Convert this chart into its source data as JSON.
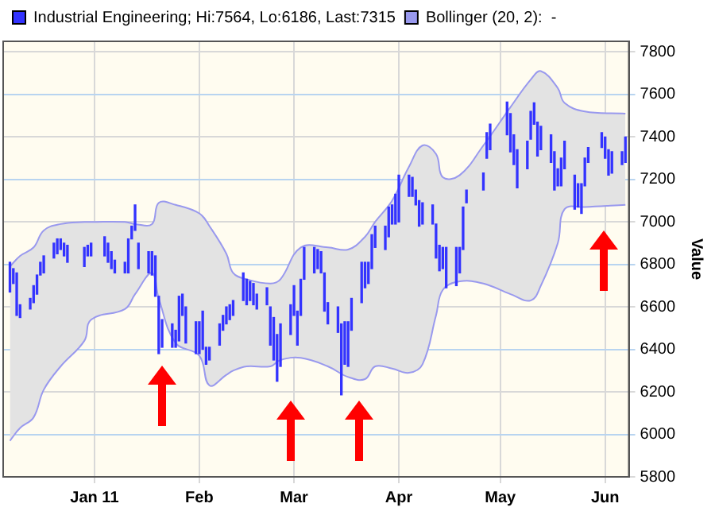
{
  "chart_data": {
    "type": "bar",
    "ylabel": "Value",
    "xlim": [
      "2010-12-05",
      "2011-06-08"
    ],
    "xticks": [
      {
        "value": "2011-01-01",
        "label": "Jan 11"
      },
      {
        "value": "2011-02-01",
        "label": "Feb"
      },
      {
        "value": "2011-03-01",
        "label": "Mar"
      },
      {
        "value": "2011-04-01",
        "label": "Apr"
      },
      {
        "value": "2011-05-01",
        "label": "May"
      },
      {
        "value": "2011-06-01",
        "label": "Jun"
      }
    ],
    "ylim": [
      5800,
      7850
    ],
    "yticks": [
      5800,
      6000,
      6200,
      6400,
      6600,
      6800,
      7000,
      7200,
      7400,
      7600,
      7800
    ],
    "grid": true,
    "legend": "top left",
    "series": [
      {
        "name": "Industrial Engineering; Hi:7564, Lo:6186, Last:7315",
        "color": "#3333ff",
        "x": [
          "2010-12-07",
          "2010-12-08",
          "2010-12-09",
          "2010-12-10",
          "2010-12-13",
          "2010-12-14",
          "2010-12-15",
          "2010-12-16",
          "2010-12-17",
          "2010-12-20",
          "2010-12-21",
          "2010-12-22",
          "2010-12-23",
          "2010-12-24",
          "2010-12-29",
          "2010-12-30",
          "2010-12-31",
          "2011-01-04",
          "2011-01-05",
          "2011-01-06",
          "2011-01-07",
          "2011-01-10",
          "2011-01-11",
          "2011-01-12",
          "2011-01-13",
          "2011-01-14",
          "2011-01-17",
          "2011-01-18",
          "2011-01-19",
          "2011-01-20",
          "2011-01-21",
          "2011-01-24",
          "2011-01-25",
          "2011-01-26",
          "2011-01-27",
          "2011-01-28",
          "2011-01-31",
          "2011-02-01",
          "2011-02-02",
          "2011-02-03",
          "2011-02-04",
          "2011-02-07",
          "2011-02-08",
          "2011-02-09",
          "2011-02-10",
          "2011-02-11",
          "2011-02-14",
          "2011-02-15",
          "2011-02-16",
          "2011-02-17",
          "2011-02-18",
          "2011-02-21",
          "2011-02-22",
          "2011-02-23",
          "2011-02-24",
          "2011-02-25",
          "2011-02-28",
          "2011-03-01",
          "2011-03-02",
          "2011-03-03",
          "2011-03-04",
          "2011-03-07",
          "2011-03-08",
          "2011-03-09",
          "2011-03-10",
          "2011-03-11",
          "2011-03-14",
          "2011-03-15",
          "2011-03-16",
          "2011-03-17",
          "2011-03-18",
          "2011-03-21",
          "2011-03-22",
          "2011-03-23",
          "2011-03-24",
          "2011-03-25",
          "2011-03-28",
          "2011-03-29",
          "2011-03-30",
          "2011-03-31",
          "2011-04-01",
          "2011-04-04",
          "2011-04-05",
          "2011-04-06",
          "2011-04-07",
          "2011-04-08",
          "2011-04-11",
          "2011-04-12",
          "2011-04-13",
          "2011-04-14",
          "2011-04-15",
          "2011-04-18",
          "2011-04-19",
          "2011-04-20",
          "2011-04-21",
          "2011-04-26",
          "2011-04-27",
          "2011-04-28",
          "2011-05-03",
          "2011-05-04",
          "2011-05-05",
          "2011-05-06",
          "2011-05-09",
          "2011-05-10",
          "2011-05-11",
          "2011-05-12",
          "2011-05-13",
          "2011-05-16",
          "2011-05-17",
          "2011-05-18",
          "2011-05-19",
          "2011-05-20",
          "2011-05-23",
          "2011-05-24",
          "2011-05-25",
          "2011-05-26",
          "2011-05-27",
          "2011-05-31",
          "2011-06-01",
          "2011-06-02",
          "2011-06-03",
          "2011-06-06",
          "2011-06-07"
        ],
        "base": [
          6670,
          6710,
          6560,
          6550,
          6590,
          6620,
          6660,
          6750,
          6760,
          6830,
          6850,
          6870,
          6840,
          6810,
          6790,
          6840,
          6840,
          6840,
          6810,
          6780,
          6760,
          6760,
          6760,
          6920,
          6960,
          6780,
          6760,
          6750,
          6650,
          6380,
          6410,
          6410,
          6410,
          6440,
          6560,
          6430,
          6380,
          6380,
          6400,
          6330,
          6350,
          6420,
          6490,
          6520,
          6540,
          6560,
          6630,
          6610,
          6630,
          6610,
          6590,
          6610,
          6420,
          6350,
          6250,
          6320,
          6470,
          6560,
          6420,
          6560,
          6730,
          6760,
          6780,
          6760,
          6580,
          6520,
          6480,
          6186,
          6330,
          6320,
          6490,
          6620,
          6690,
          6710,
          6780,
          6880,
          6870,
          6930,
          6990,
          6990,
          7000,
          7120,
          7120,
          7080,
          6980,
          6990,
          6990,
          6830,
          6770,
          6780,
          6690,
          6700,
          6760,
          6870,
          7090,
          7150,
          7300,
          7340,
          7410,
          7330,
          7270,
          7160,
          7250,
          7390,
          7460,
          7310,
          7340,
          7280,
          7150,
          7170,
          7170,
          7250,
          7060,
          7070,
          7040,
          7170,
          7280,
          7350,
          7300,
          7220,
          7230,
          7270,
          7280
        ],
        "values": [
          140,
          70,
          200,
          60,
          50,
          80,
          90,
          60,
          80,
          70,
          70,
          50,
          60,
          80,
          90,
          50,
          60,
          90,
          90,
          80,
          60,
          50,
          160,
          60,
          120,
          120,
          100,
          110,
          190,
          270,
          130,
          110,
          80,
          210,
          100,
          170,
          150,
          150,
          180,
          80,
          60,
          100,
          70,
          80,
          70,
          70,
          130,
          120,
          90,
          100,
          70,
          80,
          180,
          200,
          220,
          200,
          140,
          140,
          160,
          170,
          150,
          120,
          90,
          100,
          180,
          100,
          120,
          334,
          200,
          210,
          150,
          190,
          120,
          100,
          160,
          100,
          110,
          140,
          90,
          140,
          220,
          100,
          90,
          70,
          120,
          100,
          90,
          160,
          120,
          100,
          190,
          180,
          120,
          200,
          60,
          80,
          120,
          120,
          154,
          180,
          140,
          180,
          130,
          130,
          100,
          160,
          110,
          130,
          180,
          80,
          130,
          130,
          160,
          110,
          140,
          130,
          70,
          70,
          100,
          120,
          100,
          60,
          120
        ]
      },
      {
        "name": "Bollinger (20, 2):  -",
        "type": "line",
        "color": "#9999ee",
        "x": [
          "2010-12-07",
          "2010-12-10",
          "2010-12-14",
          "2010-12-17",
          "2010-12-22",
          "2010-12-29",
          "2010-12-31",
          "2011-01-10",
          "2011-01-13",
          "2011-01-18",
          "2011-01-20",
          "2011-01-25",
          "2011-02-01",
          "2011-02-04",
          "2011-02-09",
          "2011-02-11",
          "2011-02-15",
          "2011-02-22",
          "2011-02-25",
          "2011-03-03",
          "2011-03-11",
          "2011-03-17",
          "2011-03-22",
          "2011-03-25",
          "2011-03-30",
          "2011-04-04",
          "2011-04-08",
          "2011-04-12",
          "2011-04-14",
          "2011-04-19",
          "2011-04-26",
          "2011-05-04",
          "2011-05-10",
          "2011-05-13",
          "2011-05-18",
          "2011-05-20",
          "2011-05-26",
          "2011-06-07"
        ],
        "values": [
          6790,
          6840,
          6880,
          6960,
          6990,
          7000,
          7000,
          7000,
          6990,
          6990,
          7090,
          7080,
          7040,
          6980,
          6850,
          6760,
          6730,
          6710,
          6730,
          6880,
          6880,
          6870,
          6930,
          7000,
          7100,
          7260,
          7360,
          7320,
          7210,
          7220,
          7360,
          7540,
          7670,
          7710,
          7630,
          7560,
          7520,
          7510
        ]
      },
      {
        "type": "line",
        "color": "#9999ee",
        "x": [
          "2010-12-07",
          "2010-12-10",
          "2010-12-14",
          "2010-12-17",
          "2010-12-22",
          "2010-12-29",
          "2010-12-31",
          "2011-01-10",
          "2011-01-13",
          "2011-01-18",
          "2011-01-20",
          "2011-01-25",
          "2011-02-01",
          "2011-02-04",
          "2011-02-09",
          "2011-02-11",
          "2011-02-15",
          "2011-02-22",
          "2011-02-25",
          "2011-03-03",
          "2011-03-11",
          "2011-03-17",
          "2011-03-22",
          "2011-03-25",
          "2011-03-30",
          "2011-04-04",
          "2011-04-08",
          "2011-04-12",
          "2011-04-14",
          "2011-04-19",
          "2011-04-26",
          "2011-05-04",
          "2011-05-10",
          "2011-05-13",
          "2011-05-18",
          "2011-05-20",
          "2011-05-26",
          "2011-06-07"
        ],
        "values": [
          5970,
          6030,
          6080,
          6210,
          6320,
          6440,
          6540,
          6590,
          6660,
          6760,
          6640,
          6430,
          6370,
          6230,
          6280,
          6300,
          6320,
          6320,
          6350,
          6360,
          6320,
          6270,
          6260,
          6320,
          6310,
          6290,
          6330,
          6560,
          6680,
          6720,
          6710,
          6660,
          6630,
          6700,
          6900,
          7060,
          7070,
          7080
        ]
      },
      {
        "type": "line",
        "color": "#e3e3e3",
        "x": [
          "2010-12-07",
          "2010-12-10",
          "2010-12-14",
          "2010-12-17",
          "2010-12-22",
          "2010-12-29",
          "2010-12-31",
          "2011-01-10",
          "2011-01-13",
          "2011-01-18",
          "2011-01-20",
          "2011-01-25",
          "2011-02-01",
          "2011-02-04",
          "2011-02-09",
          "2011-02-11",
          "2011-02-15",
          "2011-02-22",
          "2011-02-25",
          "2011-03-03",
          "2011-03-11",
          "2011-03-17",
          "2011-03-22",
          "2011-03-25",
          "2011-03-30",
          "2011-04-04",
          "2011-04-08",
          "2011-04-12",
          "2011-04-14",
          "2011-04-19",
          "2011-04-26",
          "2011-05-04",
          "2011-05-10",
          "2011-05-13",
          "2011-05-18",
          "2011-05-20",
          "2011-05-26",
          "2011-06-07"
        ],
        "values": [
          null,
          null,
          null,
          null,
          null,
          null,
          null,
          null,
          null,
          null,
          null,
          null,
          null,
          null,
          null,
          null,
          null,
          null,
          null,
          null,
          null,
          null,
          null,
          null,
          null,
          null,
          null,
          null,
          null,
          null,
          null,
          null,
          null,
          null,
          null,
          null,
          null,
          null
        ],
        "upper": [
          6790,
          6840,
          6880,
          6960,
          6990,
          7000,
          7000,
          7000,
          6990,
          6990,
          7090,
          7080,
          7040,
          6980,
          6850,
          6760,
          6730,
          6710,
          6730,
          6880,
          6880,
          6870,
          6930,
          7000,
          7100,
          7260,
          7360,
          7320,
          7210,
          7220,
          7360,
          7540,
          7670,
          7710,
          7630,
          7560,
          7520,
          7510
        ],
        "lower": [
          5970,
          6030,
          6080,
          6210,
          6320,
          6440,
          6540,
          6590,
          6660,
          6760,
          6640,
          6430,
          6370,
          6230,
          6280,
          6300,
          6320,
          6320,
          6350,
          6360,
          6320,
          6270,
          6260,
          6320,
          6310,
          6290,
          6330,
          6560,
          6680,
          6720,
          6710,
          6660,
          6630,
          6700,
          6900,
          7060,
          7070,
          7080
        ]
      }
    ]
  }
}
